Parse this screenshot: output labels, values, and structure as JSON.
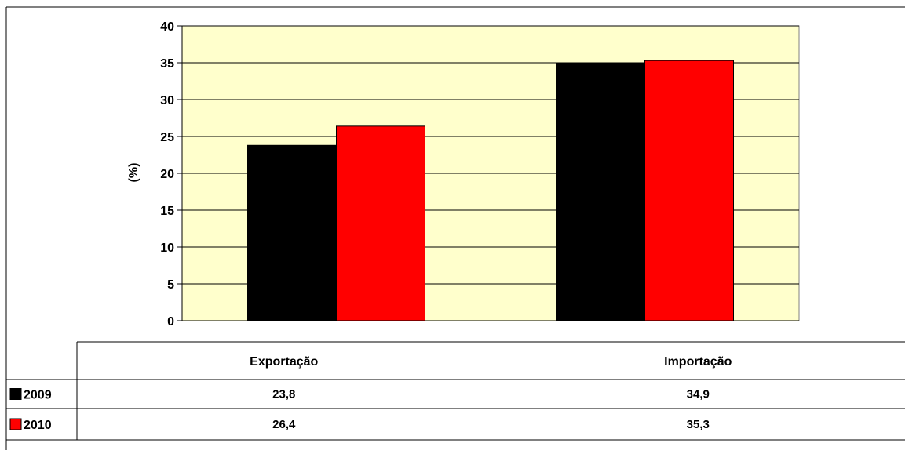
{
  "chart_data": {
    "type": "bar",
    "ylabel": "(%)",
    "ylim": [
      0,
      40
    ],
    "yticks": [
      0,
      5,
      10,
      15,
      20,
      25,
      30,
      35,
      40
    ],
    "grid": true,
    "categories": [
      "Exportação",
      "Importação"
    ],
    "series": [
      {
        "name": "2009",
        "values": [
          23.8,
          34.9
        ],
        "value_labels": [
          "23,8",
          "34,9"
        ],
        "color": "#000000"
      },
      {
        "name": "2010",
        "values": [
          26.4,
          35.3
        ],
        "value_labels": [
          "26,4",
          "35,3"
        ],
        "color": "#ff0000"
      }
    ],
    "plot_background": "#ffffcc",
    "legend": "data-table"
  }
}
